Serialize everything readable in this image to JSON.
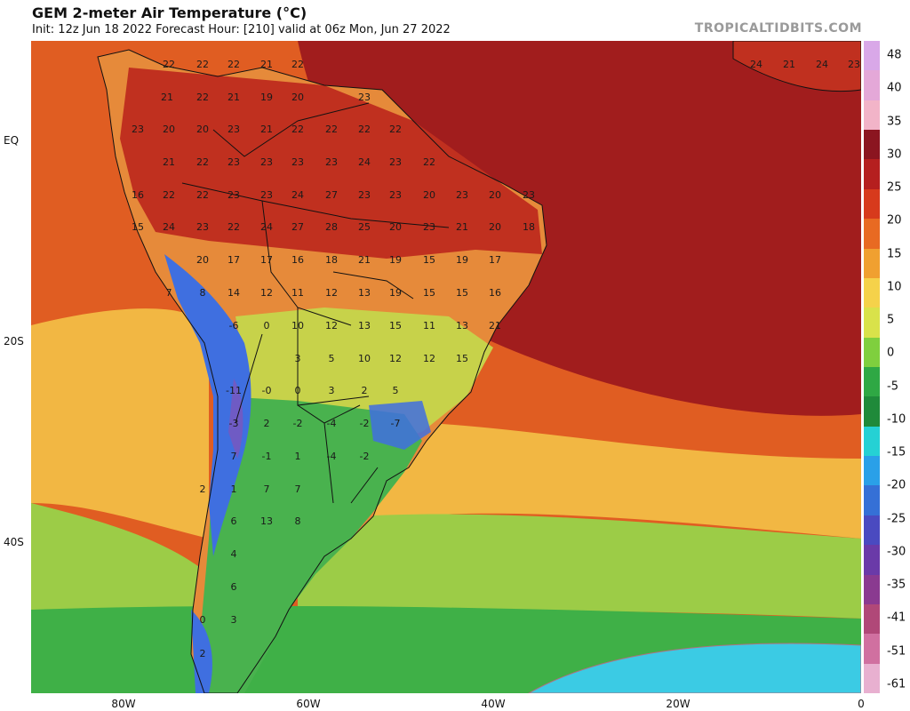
{
  "header": {
    "title": "GEM 2-meter Air Temperature (°C)",
    "subtitle": "Init: 12z Jun 18 2022    Forecast Hour: [210]    valid at 06z Mon, Jun 27 2022",
    "brand": "TROPICALTIDBITS.COM"
  },
  "axes": {
    "lat_labels": [
      "EQ",
      "20S",
      "40S"
    ],
    "lon_labels": [
      "80W",
      "60W",
      "40W",
      "20W",
      "0"
    ]
  },
  "colorbar": {
    "ticks": [
      "48",
      "40",
      "35",
      "30",
      "25",
      "20",
      "15",
      "10",
      "5",
      "0",
      "-5",
      "-10",
      "-15",
      "-20",
      "-25",
      "-30",
      "-35",
      "-41",
      "-51",
      "-61"
    ],
    "colors": [
      "#d9a8e8",
      "#e4a8d8",
      "#f2b4c8",
      "#8b1520",
      "#b51f1f",
      "#d73a1c",
      "#e86a22",
      "#f0a030",
      "#f5d24a",
      "#d9e24a",
      "#7fcf3e",
      "#2fa844",
      "#1f8a3a",
      "#25d1d4",
      "#2aa0e8",
      "#3570d6",
      "#4a4ac0",
      "#6a3aa8",
      "#8a3a90",
      "#b04878",
      "#d070a0",
      "#e8b0d0"
    ]
  },
  "map": {
    "colors": {
      "ocean_hot": "#a11d1d",
      "ocean_warm": "#e05d22",
      "ocean_mid": "#f2b743",
      "ocean_cool": "#9ccc47",
      "ocean_cold": "#3fb047",
      "antarctic": "#3bcbe4",
      "land_hot": "#c0301f",
      "land_warm": "#e68a3a",
      "land_mild": "#c7d24a",
      "land_cool": "#49b24e",
      "andes_cold": "#3f6fe0",
      "andes_very_cold": "#6f5bc4",
      "border": "#111111"
    },
    "temp_labels": [
      "22",
      "22",
      "22",
      "21",
      "22",
      "21",
      "22",
      "21",
      "19",
      "20",
      "23",
      "23",
      "20",
      "20",
      "23",
      "21",
      "22",
      "22",
      "22",
      "22",
      "21",
      "22",
      "23",
      "23",
      "23",
      "23",
      "24",
      "23",
      "22",
      "16",
      "22",
      "22",
      "23",
      "23",
      "24",
      "27",
      "23",
      "23",
      "20",
      "23",
      "20",
      "23",
      "15",
      "24",
      "23",
      "22",
      "24",
      "27",
      "28",
      "25",
      "20",
      "23",
      "21",
      "20",
      "18",
      "20",
      "17",
      "17",
      "16",
      "18",
      "21",
      "19",
      "15",
      "19",
      "17",
      "7",
      "8",
      "14",
      "12",
      "11",
      "12",
      "13",
      "19",
      "15",
      "15",
      "16",
      "-6",
      "0",
      "10",
      "12",
      "13",
      "15",
      "11",
      "13",
      "21",
      "3",
      "5",
      "10",
      "12",
      "12",
      "15",
      "-11",
      "-0",
      "0",
      "3",
      "2",
      "5",
      "-3",
      "2",
      "-2",
      "-4",
      "-2",
      "-7",
      "7",
      "-1",
      "1",
      "-4",
      "-2",
      "2",
      "1",
      "7",
      "7",
      "6",
      "13",
      "8",
      "4",
      "6",
      "0",
      "3",
      "2",
      "24",
      "21",
      "24",
      "23"
    ]
  }
}
